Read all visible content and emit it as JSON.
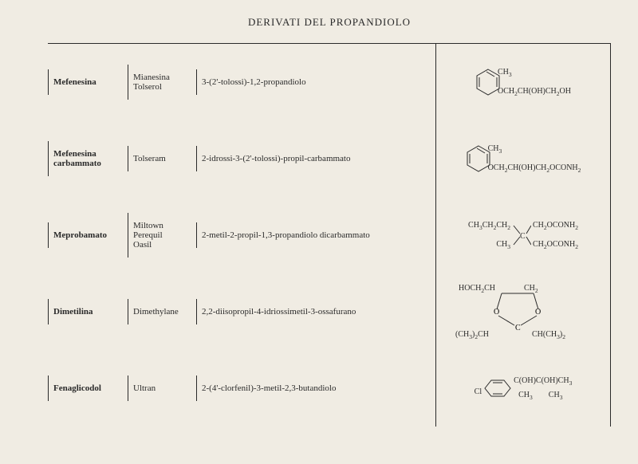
{
  "title": "DERIVATI DEL PROPANDIOLO",
  "rows": [
    {
      "generic": "Mefenesina",
      "brands": "Mianesina\nTolserol",
      "chem": "3-(2'-tolossi)-1,2-propandiolo",
      "ring_sub_top": "CH₃",
      "ring_sub_right": "OCH₂CH(OH)CH₂OH"
    },
    {
      "generic": "Mefenesina\ncarbammato",
      "brands": "Tolseram",
      "chem": "2-idrossi-3-(2'-tolossi)-propil-carbammato",
      "ring_sub_top": "CH₃",
      "ring_sub_right": "OCH₂CH(OH)CH₂OCONH₂"
    },
    {
      "generic": "Meprobamato",
      "brands": "Miltown\nPerequil\nOasil",
      "chem": "2-metil-2-propil-1,3-propandiolo dicarbammato",
      "branch_top_l": "CH₃CH₂CH₂",
      "branch_top_r": "CH₂OCONH₂",
      "branch_bot_l": "CH₃",
      "branch_bot_r": "CH₂OCONH₂"
    },
    {
      "generic": "Dimetilina",
      "brands": "Dimethylane",
      "chem": "2,2-diisopropil-4-idriossimetil-3-ossafurano",
      "ring5_top_l": "HOCH₂CH",
      "ring5_top_r": "CH₂",
      "ring5_bot_l": "(CH₃)₂CH",
      "ring5_bot_r": "CH(CH₃)₂"
    },
    {
      "generic": "Fenaglicodol",
      "brands": "Ultran",
      "chem": "2-(4'-clorfenil)-3-metil-2,3-butandiolo",
      "phenyl_left": "Cl",
      "phenyl_right_top": "C(OH)C(OH)CH₃",
      "phenyl_right_bot_l": "CH₃",
      "phenyl_right_bot_r": "CH₃"
    }
  ]
}
